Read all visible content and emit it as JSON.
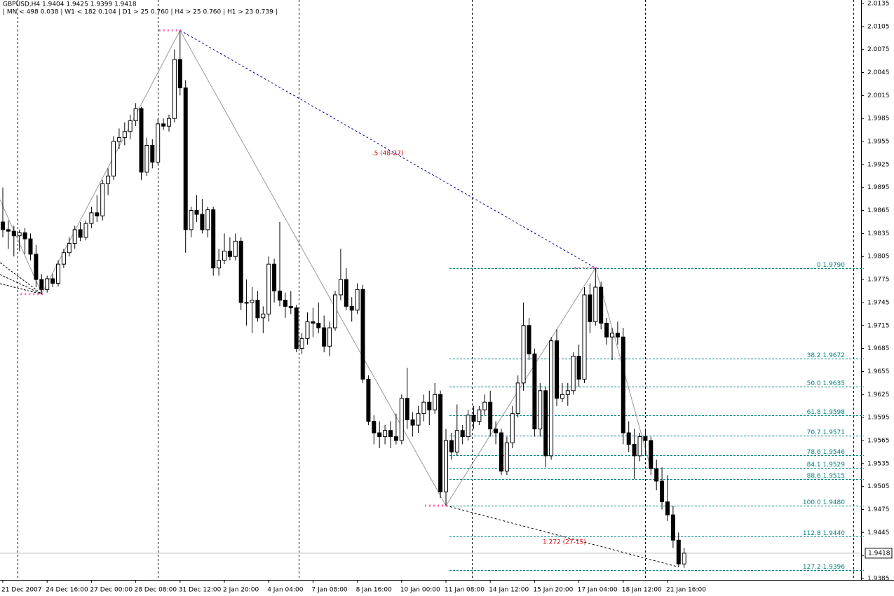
{
  "header": {
    "line1": "GBPUSD,H4  1.9404 1.9425 1.9399 1.9418",
    "line2": "|  MN < 498   0.038  |  W1 < 182   0.104  |  D1 > 25   0.760  |  H4 > 25   0.760  |  H1 > 23   0.739  |"
  },
  "chart_data": {
    "type": "candlestick",
    "categories": [
      "21 Dec 2007",
      null,
      null,
      null,
      null,
      null,
      null,
      null,
      "24 Dec 16:00",
      null,
      null,
      null,
      null,
      null,
      null,
      null,
      "27 Dec 00:00",
      null,
      null,
      null,
      null,
      null,
      null,
      null,
      "28 Dec 08:00",
      null,
      null,
      null,
      null,
      null,
      null,
      null,
      "31 Dec 12:00",
      null,
      null,
      null,
      null,
      null,
      null,
      null,
      "2 Jan 20:00",
      null,
      null,
      null,
      null,
      null,
      null,
      null,
      "4 Jan 04:00",
      null,
      null,
      null,
      null,
      null,
      null,
      null,
      "7 Jan 08:00",
      null,
      null,
      null,
      null,
      null,
      null,
      null,
      "8 Jan 16:00",
      null,
      null,
      null,
      null,
      null,
      null,
      null,
      "10 Jan 00:00",
      null,
      null,
      null,
      null,
      null,
      null,
      null,
      "11 Jan 08:00",
      null,
      null,
      null,
      null,
      null,
      null,
      null,
      "14 Jan 12:00",
      null,
      null,
      null,
      null,
      null,
      null,
      null,
      "15 Jan 20:00",
      null,
      null,
      null,
      null,
      null,
      null,
      null,
      "17 Jan 04:00",
      null,
      null,
      null,
      null,
      null,
      null,
      null,
      "18 Jan 12:00",
      null,
      null,
      null,
      null,
      null,
      null,
      null,
      "21 Jan 16:00",
      null,
      null,
      null
    ],
    "candles": [
      [
        1.985,
        1.9895,
        1.983,
        1.984
      ],
      [
        1.984,
        1.9852,
        1.9815,
        1.9838
      ],
      [
        1.9838,
        1.9845,
        1.9805,
        1.9832
      ],
      [
        1.9832,
        1.984,
        1.9812,
        1.9836
      ],
      [
        1.9836,
        1.9842,
        1.9808,
        1.9828
      ],
      [
        1.9828,
        1.9835,
        1.98,
        1.9808
      ],
      [
        1.9808,
        1.982,
        1.9765,
        1.9775
      ],
      [
        1.9775,
        1.9782,
        1.9756,
        1.9762
      ],
      [
        1.9762,
        1.978,
        1.9758,
        1.9776
      ],
      [
        1.9776,
        1.9782,
        1.9765,
        1.977
      ],
      [
        1.977,
        1.98,
        1.9766,
        1.9795
      ],
      [
        1.9795,
        1.9815,
        1.979,
        1.981
      ],
      [
        1.981,
        1.983,
        1.9805,
        1.9822
      ],
      [
        1.9822,
        1.9845,
        1.9815,
        1.984
      ],
      [
        1.984,
        1.985,
        1.9825,
        1.983
      ],
      [
        1.983,
        1.9852,
        1.9826,
        1.9848
      ],
      [
        1.9848,
        1.987,
        1.9842,
        1.9862
      ],
      [
        1.9862,
        1.9885,
        1.985,
        1.9858
      ],
      [
        1.9858,
        1.9905,
        1.9852,
        1.99
      ],
      [
        1.99,
        1.992,
        1.9885,
        1.991
      ],
      [
        1.991,
        1.9962,
        1.9905,
        1.9955
      ],
      [
        1.9955,
        1.9972,
        1.9945,
        1.996
      ],
      [
        1.996,
        1.998,
        1.995,
        1.9968
      ],
      [
        1.9968,
        1.999,
        1.9958,
        1.9982
      ],
      [
        1.9982,
        2.0005,
        1.9975,
        1.9998
      ],
      [
        1.9998,
        2.0,
        1.9905,
        1.9915
      ],
      [
        1.9915,
        1.996,
        1.991,
        1.995
      ],
      [
        1.995,
        1.9958,
        1.992,
        1.9928
      ],
      [
        1.9928,
        1.9985,
        1.9925,
        1.9978
      ],
      [
        1.9978,
        1.9985,
        1.997,
        1.9975
      ],
      [
        1.9975,
        1.999,
        1.9968,
        1.9985
      ],
      [
        1.9985,
        2.0075,
        1.998,
        2.0062
      ],
      [
        2.0062,
        2.01,
        2.0015,
        2.0025
      ],
      [
        2.0025,
        2.0035,
        1.981,
        1.984
      ],
      [
        1.984,
        1.987,
        1.983,
        1.9865
      ],
      [
        1.9865,
        1.9885,
        1.985,
        1.986
      ],
      [
        1.986,
        1.988,
        1.9835,
        1.984
      ],
      [
        1.984,
        1.987,
        1.983,
        1.9866
      ],
      [
        1.9866,
        1.987,
        1.978,
        1.979
      ],
      [
        1.979,
        1.9815,
        1.978,
        1.98
      ],
      [
        1.98,
        1.9835,
        1.9795,
        1.9812
      ],
      [
        1.9812,
        1.983,
        1.98,
        1.9805
      ],
      [
        1.9805,
        1.9835,
        1.98,
        1.9825
      ],
      [
        1.9825,
        1.983,
        1.9735,
        1.9745
      ],
      [
        1.9745,
        1.9775,
        1.9715,
        1.9745
      ],
      [
        1.9745,
        1.9765,
        1.9705,
        1.9748
      ],
      [
        1.9748,
        1.976,
        1.972,
        1.9725
      ],
      [
        1.9725,
        1.974,
        1.9705,
        1.973
      ],
      [
        1.973,
        1.9805,
        1.972,
        1.9795
      ],
      [
        1.9795,
        1.9802,
        1.9745,
        1.976
      ],
      [
        1.976,
        1.985,
        1.974,
        1.9748
      ],
      [
        1.9748,
        1.9758,
        1.9725,
        1.974
      ],
      [
        1.974,
        1.976,
        1.973,
        1.9738
      ],
      [
        1.9738,
        1.9742,
        1.968,
        1.9685
      ],
      [
        1.9685,
        1.9705,
        1.9678,
        1.9698
      ],
      [
        1.9698,
        1.9732,
        1.969,
        1.972
      ],
      [
        1.972,
        1.9738,
        1.97,
        1.9718
      ],
      [
        1.9718,
        1.9745,
        1.9705,
        1.9712
      ],
      [
        1.9712,
        1.9728,
        1.968,
        1.9688
      ],
      [
        1.9688,
        1.972,
        1.9675,
        1.9712
      ],
      [
        1.9712,
        1.976,
        1.9708,
        1.9755
      ],
      [
        1.9755,
        1.9815,
        1.9748,
        1.9775
      ],
      [
        1.9775,
        1.979,
        1.9735,
        1.974
      ],
      [
        1.974,
        1.9752,
        1.972,
        1.9735
      ],
      [
        1.9735,
        1.977,
        1.973,
        1.9762
      ],
      [
        1.9762,
        1.9768,
        1.964,
        1.9645
      ],
      [
        1.9645,
        1.965,
        1.9585,
        1.959
      ],
      [
        1.959,
        1.9598,
        1.956,
        1.9575
      ],
      [
        1.9575,
        1.959,
        1.9555,
        1.957
      ],
      [
        1.957,
        1.9585,
        1.956,
        1.9578
      ],
      [
        1.9578,
        1.959,
        1.9555,
        1.957
      ],
      [
        1.957,
        1.96,
        1.956,
        1.9565
      ],
      [
        1.9565,
        1.9625,
        1.956,
        1.962
      ],
      [
        1.962,
        1.966,
        1.958,
        1.9592
      ],
      [
        1.9592,
        1.9602,
        1.957,
        1.9585
      ],
      [
        1.9585,
        1.961,
        1.9575,
        1.96
      ],
      [
        1.96,
        1.9625,
        1.959,
        1.9615
      ],
      [
        1.9615,
        1.963,
        1.9585,
        1.9605
      ],
      [
        1.9605,
        1.964,
        1.96,
        1.9625
      ],
      [
        1.9625,
        1.963,
        1.949,
        1.9498
      ],
      [
        1.9498,
        1.958,
        1.948,
        1.9565
      ],
      [
        1.9565,
        1.9575,
        1.954,
        1.955
      ],
      [
        1.955,
        1.9612,
        1.9545,
        1.9578
      ],
      [
        1.9578,
        1.9585,
        1.956,
        1.957
      ],
      [
        1.957,
        1.9605,
        1.9565,
        1.9598
      ],
      [
        1.9598,
        1.961,
        1.958,
        1.959
      ],
      [
        1.959,
        1.961,
        1.9585,
        1.9605
      ],
      [
        1.9605,
        1.9625,
        1.9598,
        1.9615
      ],
      [
        1.9615,
        1.963,
        1.957,
        1.958
      ],
      [
        1.958,
        1.959,
        1.956,
        1.9575
      ],
      [
        1.9575,
        1.958,
        1.952,
        1.9525
      ],
      [
        1.9525,
        1.957,
        1.952,
        1.9562
      ],
      [
        1.9562,
        1.961,
        1.9555,
        1.96
      ],
      [
        1.96,
        1.965,
        1.9595,
        1.964
      ],
      [
        1.964,
        1.9745,
        1.963,
        1.9715
      ],
      [
        1.9715,
        1.9725,
        1.967,
        1.9678
      ],
      [
        1.9678,
        1.9685,
        1.957,
        1.958
      ],
      [
        1.958,
        1.964,
        1.957,
        1.963
      ],
      [
        1.963,
        1.9635,
        1.953,
        1.9545
      ],
      [
        1.9545,
        1.97,
        1.954,
        1.9695
      ],
      [
        1.9695,
        1.971,
        1.961,
        1.962
      ],
      [
        1.962,
        1.964,
        1.9615,
        1.9625
      ],
      [
        1.9625,
        1.964,
        1.961,
        1.963
      ],
      [
        1.963,
        1.968,
        1.9625,
        1.9675
      ],
      [
        1.9675,
        1.969,
        1.9635,
        1.9645
      ],
      [
        1.9645,
        1.9765,
        1.964,
        1.9755
      ],
      [
        1.9755,
        1.977,
        1.9705,
        1.972
      ],
      [
        1.972,
        1.979,
        1.9715,
        1.9765
      ],
      [
        1.9765,
        1.9772,
        1.971,
        1.9718
      ],
      [
        1.9718,
        1.9725,
        1.969,
        1.97
      ],
      [
        1.97,
        1.9712,
        1.967,
        1.9705
      ],
      [
        1.9705,
        1.972,
        1.969,
        1.97
      ],
      [
        1.97,
        1.9712,
        1.956,
        1.9575
      ],
      [
        1.9575,
        1.959,
        1.955,
        1.956
      ],
      [
        1.956,
        1.958,
        1.9515,
        1.9545
      ],
      [
        1.9545,
        1.9575,
        1.9538,
        1.957
      ],
      [
        1.957,
        1.9578,
        1.9545,
        1.9565
      ],
      [
        1.9565,
        1.957,
        1.952,
        1.9528
      ],
      [
        1.9528,
        1.954,
        1.95,
        1.9512
      ],
      [
        1.9512,
        1.953,
        1.9475,
        1.9485
      ],
      [
        1.9485,
        1.952,
        1.946,
        1.9468
      ],
      [
        1.9468,
        1.948,
        1.9425,
        1.9435
      ],
      [
        1.9435,
        1.9445,
        1.94,
        1.9404
      ],
      [
        1.9404,
        1.9425,
        1.9399,
        1.9418
      ]
    ],
    "ylim": [
      1.9385,
      2.0135
    ],
    "yticks": [
      2.0135,
      2.0105,
      2.0075,
      2.0045,
      2.0015,
      1.9985,
      1.9955,
      1.9925,
      1.9895,
      1.9865,
      1.9835,
      1.9805,
      1.9775,
      1.9745,
      1.9715,
      1.9685,
      1.9655,
      1.9625,
      1.9595,
      1.9565,
      1.9535,
      1.9505,
      1.9475,
      1.9445,
      1.9415,
      1.9385
    ],
    "fib_levels": [
      {
        "value": 1.979,
        "label": "0  1.9790"
      },
      {
        "value": 1.9672,
        "label": "38.2  1.9672"
      },
      {
        "value": 1.9635,
        "label": "50.0  1.9635"
      },
      {
        "value": 1.9598,
        "label": "61.8  1.9598"
      },
      {
        "value": 1.9571,
        "label": "70.7  1.9571"
      },
      {
        "value": 1.9546,
        "label": "78.6  1.9546"
      },
      {
        "value": 1.9529,
        "label": "84.1  1.9529"
      },
      {
        "value": 1.9515,
        "label": "88.6  1.9515"
      },
      {
        "value": 1.948,
        "label": "100.0  1.9480"
      },
      {
        "value": 1.944,
        "label": "112.8  1.9440"
      },
      {
        "value": 1.9396,
        "label": "127.2  1.9396"
      }
    ],
    "annotations": [
      ".5 (48-27)",
      "1.272 (27-15)"
    ],
    "bull_color": "#ffffff",
    "bear_color": "#000000",
    "fib_color": "#008080"
  }
}
